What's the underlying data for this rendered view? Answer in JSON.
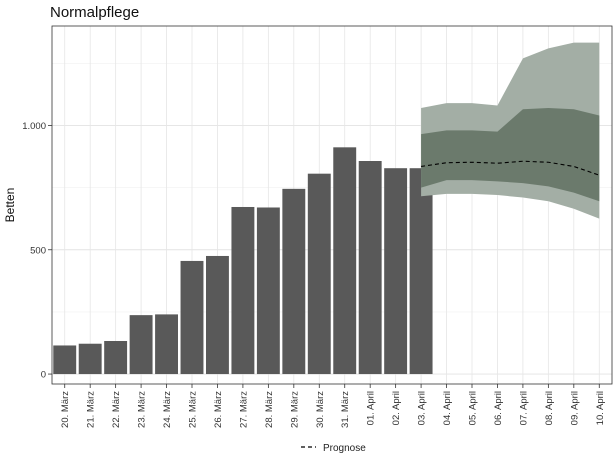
{
  "chart_data": {
    "type": "bar",
    "title": "Normalpflege",
    "xlabel": "",
    "ylabel": "Betten",
    "ylim": [
      -40,
      1400
    ],
    "yticks": [
      0,
      500,
      1000
    ],
    "ytick_labels": [
      "0",
      "500",
      "1.000"
    ],
    "grid": true,
    "legend_position": "bottom",
    "categories": [
      "20. März",
      "21. März",
      "22. März",
      "23. März",
      "24. März",
      "25. März",
      "26. März",
      "27. März",
      "28. März",
      "29. März",
      "30. März",
      "31. März",
      "01. April",
      "02. April",
      "03. April",
      "04. April",
      "05. April",
      "06. April",
      "07. April",
      "08. April",
      "09. April",
      "10. April"
    ],
    "bars": {
      "color": "#595959",
      "values": [
        115,
        122,
        133,
        237,
        240,
        455,
        475,
        672,
        670,
        745,
        806,
        912,
        857,
        828,
        828
      ]
    },
    "forecast": {
      "name": "Prognose",
      "x": [
        "03. April",
        "04. April",
        "05. April",
        "06. April",
        "07. April",
        "08. April",
        "09. April",
        "10. April"
      ],
      "median": [
        835,
        850,
        852,
        848,
        856,
        852,
        835,
        800
      ],
      "band_inner": {
        "color": "#6b7a6c",
        "lower": [
          750,
          780,
          780,
          775,
          768,
          755,
          730,
          695
        ],
        "upper": [
          965,
          980,
          980,
          975,
          1065,
          1070,
          1065,
          1040
        ]
      },
      "band_outer": {
        "color": "#a3aea5",
        "lower": [
          715,
          725,
          725,
          720,
          710,
          695,
          665,
          625
        ],
        "upper": [
          1070,
          1090,
          1090,
          1080,
          1270,
          1310,
          1333,
          1333
        ]
      }
    },
    "legend": [
      {
        "label": "Prognose",
        "style": "dashed",
        "color": "#000000"
      }
    ]
  }
}
